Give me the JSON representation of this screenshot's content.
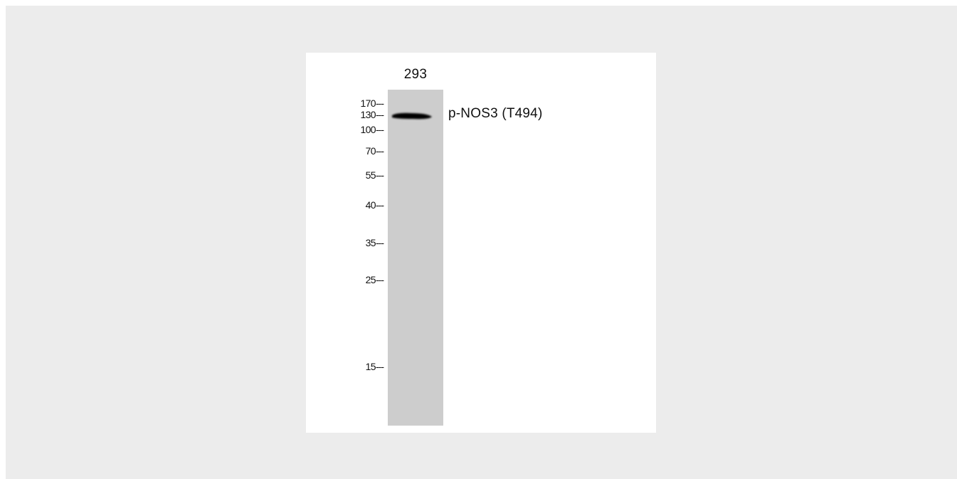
{
  "lane_label": "293",
  "band_label": "p-NOS3 (T494)",
  "markers": [
    "170",
    "130",
    "100",
    "70",
    "55",
    "40",
    "35",
    "25",
    "15"
  ]
}
